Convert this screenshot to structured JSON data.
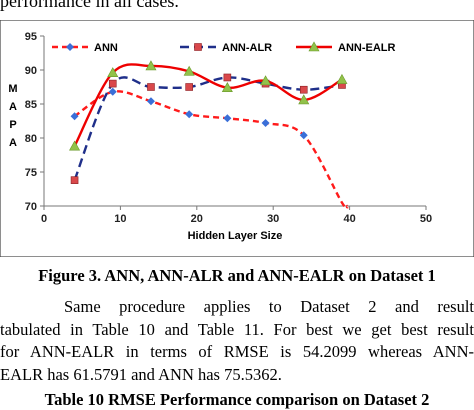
{
  "document": {
    "top_fragment": "performance in all cases.",
    "figure_caption": "Figure 3. ANN, ANN-ALR and ANN-EALR on Dataset 1",
    "paragraph_lines": [
      "Same procedure applies to Dataset 2 and result",
      "tabulated in Table 10 and Table 11. For best we get best result",
      "for ANN-EALR in terms of RMSE is 54.2099 whereas ANN-",
      "EALR has 61.5791 and ANN has 75.5362."
    ],
    "table_title_fragment": "Table 10 RMSE Performance comparison on Dataset 2"
  },
  "chart_data": {
    "type": "line",
    "title": "",
    "xlabel": "Hidden Layer Size",
    "ylabel": "M A P A",
    "xlim": [
      0,
      50
    ],
    "ylim": [
      70,
      95
    ],
    "xticks": [
      0,
      10,
      20,
      30,
      40,
      50
    ],
    "yticks": [
      70,
      75,
      80,
      85,
      90,
      95
    ],
    "grid": false,
    "legend_position": "top",
    "series": [
      {
        "name": "ANN",
        "color": "#ff1a1a",
        "marker": "diamond",
        "marker_color": "#3a6fd8",
        "line_style": "dashed",
        "x": [
          4,
          9,
          14,
          19,
          24,
          29,
          34
        ],
        "y": [
          83.2,
          86.8,
          85.4,
          83.5,
          82.9,
          82.2,
          80.4
        ],
        "tail": {
          "x": [
            39,
            39.7
          ],
          "y": [
            70.5,
            70
          ]
        }
      },
      {
        "name": "ANN-ALR",
        "color": "#1f2f8a",
        "marker": "square",
        "marker_color": "#d9484b",
        "line_style": "dashed",
        "x": [
          4,
          9,
          14,
          19,
          24,
          29,
          34,
          39
        ],
        "y": [
          73.8,
          88.0,
          87.5,
          87.5,
          88.9,
          88.0,
          87.1,
          87.8
        ]
      },
      {
        "name": "ANN-EALR",
        "color": "#ee0000",
        "marker": "triangle",
        "marker_color": "#92c24a",
        "line_style": "solid",
        "x": [
          4,
          9,
          14,
          19,
          24,
          29,
          34,
          39
        ],
        "y": [
          78.8,
          89.6,
          90.6,
          89.8,
          87.4,
          88.4,
          85.6,
          88.6
        ]
      }
    ]
  }
}
